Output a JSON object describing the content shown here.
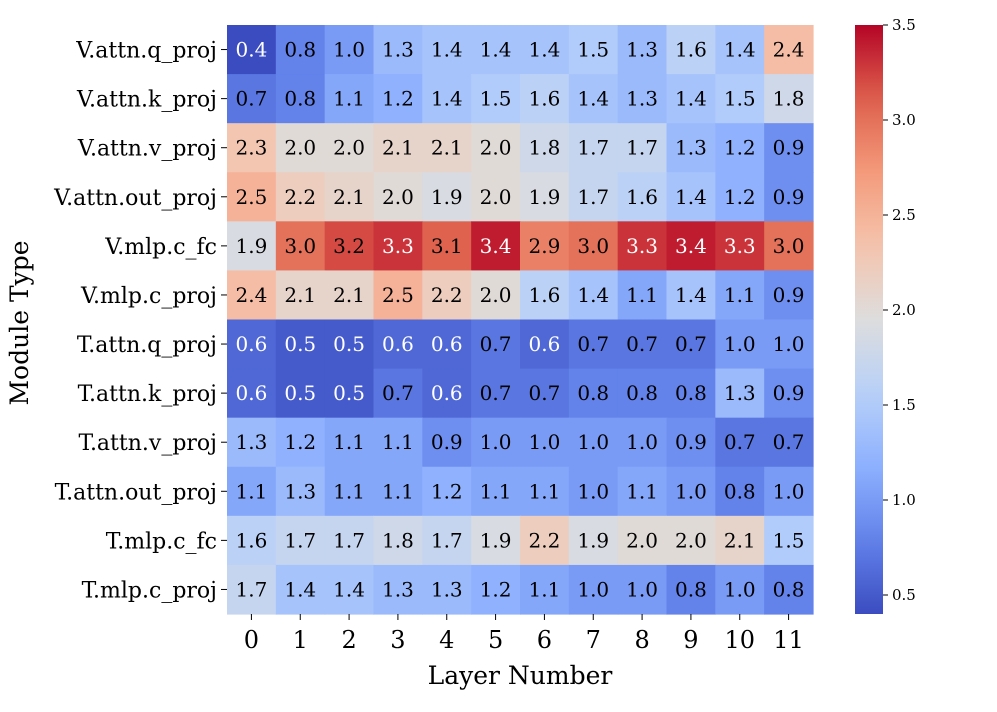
{
  "chart_data": {
    "type": "heatmap",
    "xlabel": "Layer Number",
    "ylabel": "Module Type",
    "x_categories": [
      "0",
      "1",
      "2",
      "3",
      "4",
      "5",
      "6",
      "7",
      "8",
      "9",
      "10",
      "11"
    ],
    "y_categories": [
      "V.attn.q_proj",
      "V.attn.k_proj",
      "V.attn.v_proj",
      "V.attn.out_proj",
      "V.mlp.c_fc",
      "V.mlp.c_proj",
      "T.attn.q_proj",
      "T.attn.k_proj",
      "T.attn.v_proj",
      "T.attn.out_proj",
      "T.mlp.c_fc",
      "T.mlp.c_proj"
    ],
    "values": [
      [
        0.4,
        0.8,
        1.0,
        1.3,
        1.4,
        1.4,
        1.4,
        1.5,
        1.3,
        1.6,
        1.4,
        2.4
      ],
      [
        0.7,
        0.8,
        1.1,
        1.2,
        1.4,
        1.5,
        1.6,
        1.4,
        1.3,
        1.4,
        1.5,
        1.8
      ],
      [
        2.3,
        2.0,
        2.0,
        2.1,
        2.1,
        2.0,
        1.8,
        1.7,
        1.7,
        1.3,
        1.2,
        0.9
      ],
      [
        2.5,
        2.2,
        2.1,
        2.0,
        1.9,
        2.0,
        1.9,
        1.7,
        1.6,
        1.4,
        1.2,
        0.9
      ],
      [
        1.9,
        3.0,
        3.2,
        3.3,
        3.1,
        3.4,
        2.9,
        3.0,
        3.3,
        3.4,
        3.3,
        3.0
      ],
      [
        2.4,
        2.1,
        2.1,
        2.5,
        2.2,
        2.0,
        1.6,
        1.4,
        1.1,
        1.4,
        1.1,
        0.9
      ],
      [
        0.6,
        0.5,
        0.5,
        0.6,
        0.6,
        0.7,
        0.6,
        0.7,
        0.7,
        0.7,
        1.0,
        1.0
      ],
      [
        0.6,
        0.5,
        0.5,
        0.7,
        0.6,
        0.7,
        0.7,
        0.8,
        0.8,
        0.8,
        1.3,
        0.9
      ],
      [
        1.3,
        1.2,
        1.1,
        1.1,
        0.9,
        1.0,
        1.0,
        1.0,
        1.0,
        0.9,
        0.7,
        0.7
      ],
      [
        1.1,
        1.3,
        1.1,
        1.1,
        1.2,
        1.1,
        1.1,
        1.0,
        1.1,
        1.0,
        0.8,
        1.0
      ],
      [
        1.6,
        1.7,
        1.7,
        1.8,
        1.7,
        1.9,
        2.2,
        1.9,
        2.0,
        2.0,
        2.1,
        1.5
      ],
      [
        1.7,
        1.4,
        1.4,
        1.3,
        1.3,
        1.2,
        1.1,
        1.0,
        1.0,
        0.8,
        1.0,
        0.8
      ]
    ],
    "colormap": "coolwarm",
    "vmin": 0.4,
    "vmax": 3.5,
    "colorbar_ticks": [
      "0.5",
      "1.0",
      "1.5",
      "2.0",
      "2.5",
      "3.0",
      "3.5"
    ],
    "grid": false,
    "colorbar_position": "right"
  }
}
